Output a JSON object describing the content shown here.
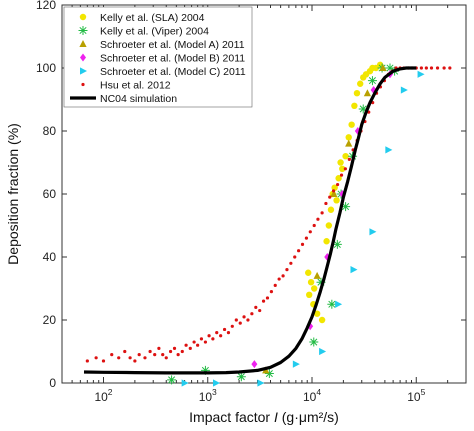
{
  "chart_data": {
    "type": "scatter",
    "title": "",
    "xlabel_prefix": "Impact factor ",
    "xlabel_var": "I",
    "xlabel_suffix": " (g·μm²/s)",
    "ylabel": "Deposition fraction (%)",
    "xscale": "log",
    "xlim": [
      40,
      300000
    ],
    "ylim": [
      0,
      120
    ],
    "yticks": [
      0,
      20,
      40,
      60,
      80,
      100,
      120
    ],
    "xticks": [
      {
        "base": "10",
        "exp": "2",
        "value": 100
      },
      {
        "base": "10",
        "exp": "3",
        "value": 1000
      },
      {
        "base": "10",
        "exp": "4",
        "value": 10000
      },
      {
        "base": "10",
        "exp": "5",
        "value": 100000
      }
    ],
    "grid": false,
    "legend_position": "top-left",
    "series": [
      {
        "name": "Kelly et al. (SLA) 2004",
        "marker": "circle",
        "color": "#f2e600",
        "points": [
          [
            9200,
            35
          ],
          [
            9800,
            32
          ],
          [
            10500,
            30
          ],
          [
            9400,
            28
          ],
          [
            10300,
            25
          ],
          [
            11200,
            22
          ],
          [
            12500,
            20
          ],
          [
            13800,
            45
          ],
          [
            14500,
            50
          ],
          [
            15200,
            55
          ],
          [
            15800,
            60
          ],
          [
            16500,
            62
          ],
          [
            17200,
            58
          ],
          [
            18000,
            65
          ],
          [
            18800,
            70
          ],
          [
            19500,
            68
          ],
          [
            21000,
            72
          ],
          [
            22500,
            78
          ],
          [
            24000,
            82
          ],
          [
            25500,
            88
          ],
          [
            27000,
            92
          ],
          [
            29000,
            95
          ],
          [
            31000,
            97
          ],
          [
            33000,
            98
          ],
          [
            36000,
            99
          ],
          [
            38000,
            100
          ],
          [
            41000,
            100
          ],
          [
            45000,
            101
          ]
        ]
      },
      {
        "name": "Kelly et al. (Viper) 2004",
        "marker": "asterisk",
        "color": "#22bb44",
        "points": [
          [
            450,
            1
          ],
          [
            950,
            4
          ],
          [
            2100,
            2
          ],
          [
            3900,
            3
          ],
          [
            10400,
            13
          ],
          [
            12200,
            32
          ],
          [
            15500,
            25
          ],
          [
            17500,
            44
          ],
          [
            19000,
            60
          ],
          [
            21000,
            56
          ],
          [
            24500,
            72
          ],
          [
            31000,
            87
          ],
          [
            38000,
            96
          ],
          [
            47000,
            100
          ],
          [
            56000,
            100
          ],
          [
            62000,
            99
          ]
        ]
      },
      {
        "name": "Schroeter et al. (Model A) 2011",
        "marker": "triangle-up",
        "color": "#b8a000",
        "points": [
          [
            3600,
            4
          ],
          [
            11200,
            34
          ],
          [
            16200,
            60
          ],
          [
            22500,
            76
          ],
          [
            34000,
            92
          ],
          [
            48000,
            100
          ]
        ]
      },
      {
        "name": "Schroeter et al. (Model B) 2011",
        "marker": "diamond",
        "color": "#ee22ee",
        "points": [
          [
            2800,
            6
          ],
          [
            9600,
            18
          ],
          [
            14000,
            40
          ],
          [
            19500,
            60
          ],
          [
            27500,
            80
          ],
          [
            39000,
            93
          ],
          [
            56000,
            98
          ]
        ]
      },
      {
        "name": "Schroeter et al. (Model C) 2011",
        "marker": "triangle-right",
        "color": "#22ccee",
        "points": [
          [
            600,
            0
          ],
          [
            1200,
            0
          ],
          [
            3200,
            0
          ],
          [
            7000,
            6
          ],
          [
            12500,
            10
          ],
          [
            17800,
            25
          ],
          [
            25000,
            36
          ],
          [
            38000,
            48
          ],
          [
            54000,
            74
          ],
          [
            76000,
            93
          ],
          [
            110000,
            98
          ]
        ]
      },
      {
        "name": "Hsu et al. 2012",
        "marker": "dot",
        "color": "#dd1111",
        "points": [
          [
            70,
            7
          ],
          [
            85,
            8
          ],
          [
            100,
            7
          ],
          [
            120,
            9
          ],
          [
            140,
            8
          ],
          [
            160,
            10
          ],
          [
            180,
            8
          ],
          [
            200,
            7
          ],
          [
            220,
            9
          ],
          [
            250,
            8
          ],
          [
            280,
            10
          ],
          [
            310,
            9
          ],
          [
            340,
            11
          ],
          [
            370,
            9
          ],
          [
            400,
            8
          ],
          [
            440,
            10
          ],
          [
            480,
            11
          ],
          [
            520,
            9
          ],
          [
            570,
            10
          ],
          [
            620,
            12
          ],
          [
            680,
            11
          ],
          [
            740,
            13
          ],
          [
            800,
            12
          ],
          [
            870,
            14
          ],
          [
            950,
            13
          ],
          [
            1030,
            15
          ],
          [
            1120,
            14
          ],
          [
            1220,
            16
          ],
          [
            1330,
            15
          ],
          [
            1450,
            17
          ],
          [
            1580,
            16
          ],
          [
            1720,
            18
          ],
          [
            1880,
            20
          ],
          [
            2050,
            19
          ],
          [
            2230,
            21
          ],
          [
            2430,
            20
          ],
          [
            2650,
            22
          ],
          [
            2890,
            24
          ],
          [
            3150,
            23
          ],
          [
            3430,
            26
          ],
          [
            3740,
            27
          ],
          [
            4080,
            29
          ],
          [
            4440,
            31
          ],
          [
            4840,
            33
          ],
          [
            5280,
            34
          ],
          [
            5750,
            36
          ],
          [
            6270,
            38
          ],
          [
            6830,
            40
          ],
          [
            7440,
            42
          ],
          [
            8110,
            44
          ],
          [
            8840,
            46
          ],
          [
            9630,
            48
          ],
          [
            10500,
            50
          ],
          [
            11400,
            52
          ],
          [
            12500,
            54
          ],
          [
            13600,
            57
          ],
          [
            14800,
            59
          ],
          [
            16100,
            61
          ],
          [
            17600,
            63
          ],
          [
            19200,
            66
          ],
          [
            20900,
            68
          ],
          [
            22800,
            71
          ],
          [
            24800,
            74
          ],
          [
            27100,
            77
          ],
          [
            29500,
            80
          ],
          [
            32200,
            83
          ],
          [
            35000,
            86
          ],
          [
            38200,
            89
          ],
          [
            41600,
            92
          ],
          [
            45400,
            94
          ],
          [
            49500,
            96
          ],
          [
            54000,
            98
          ],
          [
            59000,
            99
          ],
          [
            64000,
            100
          ],
          [
            70000,
            100
          ],
          [
            76000,
            100
          ],
          [
            84000,
            100
          ],
          [
            91000,
            100
          ],
          [
            100000,
            100
          ],
          [
            112000,
            100
          ],
          [
            125000,
            100
          ],
          [
            140000,
            100
          ],
          [
            160000,
            100
          ],
          [
            185000,
            100
          ],
          [
            210000,
            100
          ]
        ]
      },
      {
        "name": "NC04 simulation",
        "marker": "line",
        "color": "#000000",
        "points": [
          [
            65,
            3.5
          ],
          [
            100,
            3.4
          ],
          [
            200,
            3.3
          ],
          [
            400,
            3.2
          ],
          [
            700,
            3.2
          ],
          [
            1000,
            3.2
          ],
          [
            1500,
            3.3
          ],
          [
            2000,
            3.5
          ],
          [
            3000,
            4
          ],
          [
            4000,
            5
          ],
          [
            5000,
            6.5
          ],
          [
            6000,
            8.5
          ],
          [
            7000,
            11
          ],
          [
            8000,
            14
          ],
          [
            9000,
            17.5
          ],
          [
            10000,
            21
          ],
          [
            11000,
            25
          ],
          [
            12000,
            29
          ],
          [
            13000,
            33
          ],
          [
            14000,
            37
          ],
          [
            15000,
            41
          ],
          [
            16000,
            45
          ],
          [
            17000,
            49
          ],
          [
            18500,
            54
          ],
          [
            20000,
            59
          ],
          [
            22000,
            64
          ],
          [
            24000,
            69
          ],
          [
            26000,
            74
          ],
          [
            28000,
            78
          ],
          [
            30000,
            82
          ],
          [
            33000,
            86
          ],
          [
            36000,
            89
          ],
          [
            40000,
            92
          ],
          [
            45000,
            95
          ],
          [
            50000,
            97
          ],
          [
            60000,
            99
          ],
          [
            70000,
            99.7
          ],
          [
            80000,
            100
          ],
          [
            90000,
            100
          ],
          [
            100000,
            100
          ]
        ]
      }
    ]
  }
}
